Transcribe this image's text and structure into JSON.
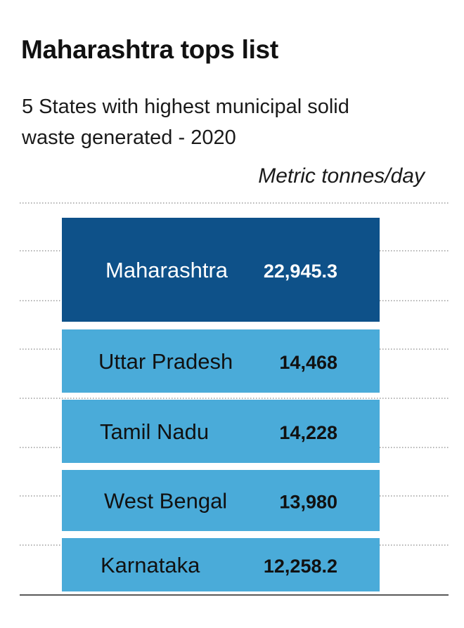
{
  "title": "Maharashtra tops list",
  "subtitle": "5 States with highest municipal solid waste generated - 2020",
  "unit_label": "Metric tonnes/day",
  "colors": {
    "highlight": "#0e5189",
    "bar": "#4aabd9",
    "gridline": "#888888",
    "label_dark_bg": "#ffffff",
    "label_light_bg": "#111111"
  },
  "chart_data": {
    "type": "bar",
    "orientation": "horizontal",
    "title": "Maharashtra tops list",
    "subtitle": "5 States with highest municipal solid waste generated - 2020",
    "unit": "Metric tonnes/day",
    "categories": [
      "Maharashtra",
      "Uttar Pradesh",
      "Tamil Nadu",
      "West Bengal",
      "Karnataka"
    ],
    "values": [
      22945.3,
      14468,
      14228,
      13980,
      12258.2
    ],
    "value_labels": [
      "22,945.3",
      "14,468",
      "14,228",
      "13,980",
      "12,258.2"
    ],
    "highlighted_category": "Maharashtra",
    "grid": true
  }
}
